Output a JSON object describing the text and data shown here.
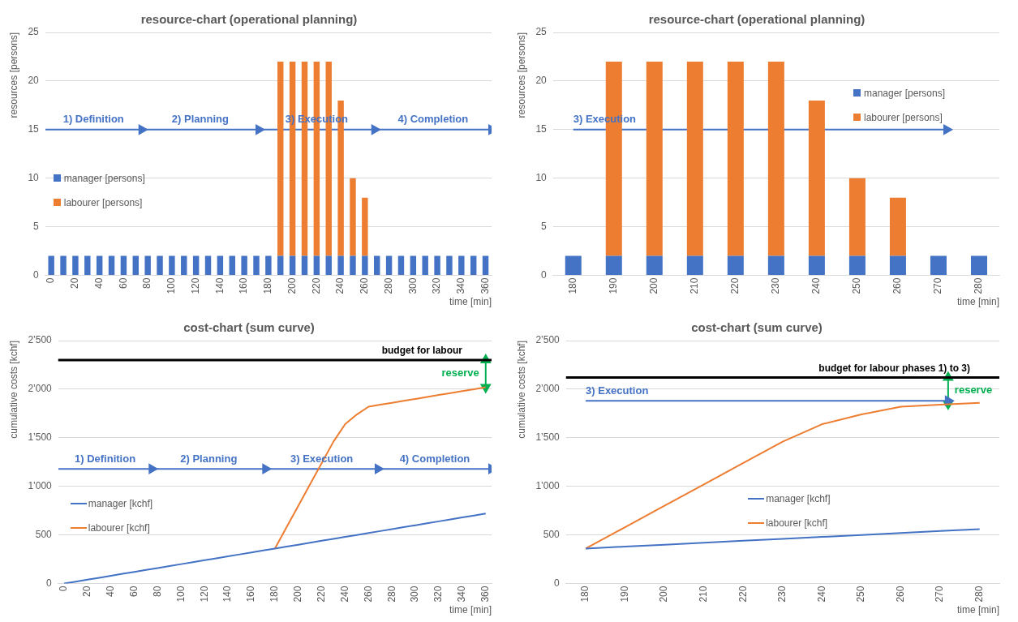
{
  "chart_data": [
    {
      "type": "bar",
      "title": "resource-chart (operational planning)",
      "xlabel": "time [min]",
      "ylabel": "resources [persons]",
      "stacked": true,
      "x": [
        0,
        10,
        20,
        30,
        40,
        50,
        60,
        70,
        80,
        90,
        100,
        110,
        120,
        130,
        140,
        150,
        160,
        170,
        180,
        190,
        200,
        210,
        220,
        230,
        240,
        250,
        260,
        270,
        280,
        290,
        300,
        310,
        320,
        330,
        340,
        350,
        360
      ],
      "series": [
        {
          "name": "manager [persons]",
          "color": "#4472c4",
          "values": [
            2,
            2,
            2,
            2,
            2,
            2,
            2,
            2,
            2,
            2,
            2,
            2,
            2,
            2,
            2,
            2,
            2,
            2,
            2,
            2,
            2,
            2,
            2,
            2,
            2,
            2,
            2,
            2,
            2,
            2,
            2,
            2,
            2,
            2,
            2,
            2,
            2
          ]
        },
        {
          "name": "labourer [persons]",
          "color": "#ed7d31",
          "values": [
            0,
            0,
            0,
            0,
            0,
            0,
            0,
            0,
            0,
            0,
            0,
            0,
            0,
            0,
            0,
            0,
            0,
            0,
            0,
            20,
            20,
            20,
            20,
            20,
            16,
            8,
            6,
            0,
            0,
            0,
            0,
            0,
            0,
            0,
            0,
            0,
            0
          ]
        },
        {
          "type": "line",
          "name": "1) Definition",
          "color": "#4472c4",
          "marker": "triangle",
          "x": [
            -5,
            75
          ],
          "values": [
            15,
            15
          ]
        },
        {
          "type": "line",
          "name": "2) Planning",
          "color": "#4472c4",
          "marker": "triangle",
          "x": [
            75,
            172
          ],
          "values": [
            15,
            15
          ]
        },
        {
          "type": "line",
          "name": "3) Execution",
          "color": "#4472c4",
          "marker": "triangle",
          "x": [
            172,
            268
          ],
          "values": [
            15,
            15
          ]
        },
        {
          "type": "line",
          "name": "4) Completion",
          "color": "#4472c4",
          "marker": "triangle",
          "x": [
            268,
            365
          ],
          "values": [
            15,
            15
          ]
        }
      ],
      "xlim": [
        -5,
        365
      ],
      "xticks": [
        0,
        20,
        40,
        60,
        80,
        100,
        120,
        140,
        160,
        180,
        200,
        220,
        240,
        260,
        280,
        300,
        320,
        340,
        360
      ],
      "ylim": [
        0,
        25
      ],
      "yticks": [
        0,
        5,
        10,
        15,
        20,
        25
      ],
      "grid": "y",
      "legend": "left"
    },
    {
      "type": "bar",
      "title": "resource-chart (operational planning)",
      "xlabel": "time [min]",
      "ylabel": "resources [persons]",
      "stacked": true,
      "x": [
        180,
        190,
        200,
        210,
        220,
        230,
        240,
        250,
        260,
        270,
        280
      ],
      "series": [
        {
          "name": "manager [persons]",
          "color": "#4472c4",
          "values": [
            2,
            2,
            2,
            2,
            2,
            2,
            2,
            2,
            2,
            2,
            2
          ]
        },
        {
          "name": "labourer [persons]",
          "color": "#ed7d31",
          "values": [
            0,
            20,
            20,
            20,
            20,
            20,
            16,
            8,
            6,
            0,
            0
          ]
        },
        {
          "type": "line",
          "name": "3) Execution",
          "color": "#4472c4",
          "marker": "triangle",
          "x": [
            180,
            272
          ],
          "values": [
            15,
            15
          ]
        }
      ],
      "xlim": [
        175,
        285
      ],
      "xticks": [
        180,
        190,
        200,
        210,
        220,
        230,
        240,
        250,
        260,
        270,
        280
      ],
      "ylim": [
        0,
        25
      ],
      "yticks": [
        0,
        5,
        10,
        15,
        20,
        25
      ],
      "grid": "y",
      "legend": "right"
    },
    {
      "type": "line",
      "title": "cost-chart (sum curve)",
      "xlabel": "time [min]",
      "ylabel": "cumulative costs [kchf]",
      "x": [
        0,
        10,
        20,
        30,
        40,
        50,
        60,
        70,
        80,
        90,
        100,
        110,
        120,
        130,
        140,
        150,
        160,
        170,
        180,
        190,
        200,
        210,
        220,
        230,
        240,
        250,
        260,
        270,
        280,
        290,
        300,
        310,
        320,
        330,
        340,
        350,
        360
      ],
      "series": [
        {
          "name": "manager [kchf]",
          "color": "#4472c4",
          "values": [
            0,
            20,
            40,
            60,
            80,
            100,
            120,
            140,
            160,
            180,
            200,
            220,
            240,
            260,
            280,
            300,
            320,
            340,
            360,
            380,
            400,
            420,
            440,
            460,
            480,
            500,
            520,
            540,
            560,
            580,
            600,
            620,
            640,
            660,
            680,
            700,
            720
          ]
        },
        {
          "name": "labourer [kchf]",
          "color": "#ed7d31",
          "values": [
            null,
            null,
            null,
            null,
            null,
            null,
            null,
            null,
            null,
            null,
            null,
            null,
            null,
            null,
            null,
            null,
            null,
            null,
            360,
            580,
            800,
            1020,
            1240,
            1460,
            1640,
            1740,
            1820,
            1840,
            1860,
            1880,
            1900,
            1920,
            1940,
            1960,
            1980,
            2000,
            2020
          ]
        },
        {
          "type": "line",
          "name": "1) Definition",
          "color": "#4472c4",
          "marker": "triangle",
          "x": [
            -5,
            75
          ],
          "values": [
            1180,
            1180
          ]
        },
        {
          "type": "line",
          "name": "2) Planning",
          "color": "#4472c4",
          "marker": "triangle",
          "x": [
            75,
            172
          ],
          "values": [
            1180,
            1180
          ]
        },
        {
          "type": "line",
          "name": "3) Execution",
          "color": "#4472c4",
          "marker": "triangle",
          "x": [
            172,
            268
          ],
          "values": [
            1180,
            1180
          ]
        },
        {
          "type": "line",
          "name": "4) Completion",
          "color": "#4472c4",
          "marker": "triangle",
          "x": [
            268,
            365
          ],
          "values": [
            1180,
            1180
          ]
        },
        {
          "type": "line",
          "name": "reserve",
          "color": "#00b050",
          "marker": "triangle",
          "x": [
            360,
            360
          ],
          "values": [
            2020,
            2300
          ]
        }
      ],
      "xlim": [
        -5,
        365
      ],
      "xticks": [
        0,
        20,
        40,
        60,
        80,
        100,
        120,
        140,
        160,
        180,
        200,
        220,
        240,
        260,
        280,
        300,
        320,
        340,
        360
      ],
      "ylim": [
        0,
        2500
      ],
      "yticks": [
        0,
        500,
        {
          "value": 1000,
          "label": "1’000"
        },
        {
          "value": 1500,
          "label": "1’500"
        },
        {
          "value": 2000,
          "label": "2’000"
        },
        {
          "value": 2500,
          "label": "2’500"
        }
      ],
      "grid": "y",
      "legend": "bottom left",
      "ref_lines": [
        {
          "axis": "y",
          "value": 2300,
          "label": "budget for labour",
          "color": "#000000"
        }
      ]
    },
    {
      "type": "line",
      "title": "cost-chart (sum curve)",
      "xlabel": "time [min]",
      "ylabel": "cumulative costs [kchf]",
      "x": [
        180,
        190,
        200,
        210,
        220,
        230,
        240,
        250,
        260,
        270,
        280
      ],
      "series": [
        {
          "name": "manager [kchf]",
          "color": "#4472c4",
          "values": [
            360,
            380,
            400,
            420,
            440,
            460,
            480,
            500,
            520,
            540,
            560
          ]
        },
        {
          "name": "labourer [kchf]",
          "color": "#ed7d31",
          "values": [
            360,
            580,
            800,
            1020,
            1240,
            1460,
            1640,
            1740,
            1820,
            1840,
            1860
          ]
        },
        {
          "type": "line",
          "name": "3) Execution",
          "color": "#4472c4",
          "marker": "triangle",
          "x": [
            180,
            272
          ],
          "values": [
            1880,
            1880
          ]
        },
        {
          "type": "line",
          "name": "reserve",
          "color": "#00b050",
          "marker": "triangle",
          "x": [
            272,
            272
          ],
          "values": [
            1850,
            2120
          ]
        }
      ],
      "xlim": [
        175,
        285
      ],
      "xticks": [
        180,
        190,
        200,
        210,
        220,
        230,
        240,
        250,
        260,
        270,
        280
      ],
      "ylim": [
        0,
        2500
      ],
      "yticks": [
        0,
        500,
        {
          "value": 1000,
          "label": "1’000"
        },
        {
          "value": 1500,
          "label": "1’500"
        },
        {
          "value": 2000,
          "label": "2’000"
        },
        {
          "value": 2500,
          "label": "2’500"
        }
      ],
      "grid": "y",
      "legend": "bottom",
      "ref_lines": [
        {
          "axis": "y",
          "value": 2120,
          "label": "budget for labour phases 1) to 3)",
          "color": "#000000"
        }
      ]
    }
  ]
}
